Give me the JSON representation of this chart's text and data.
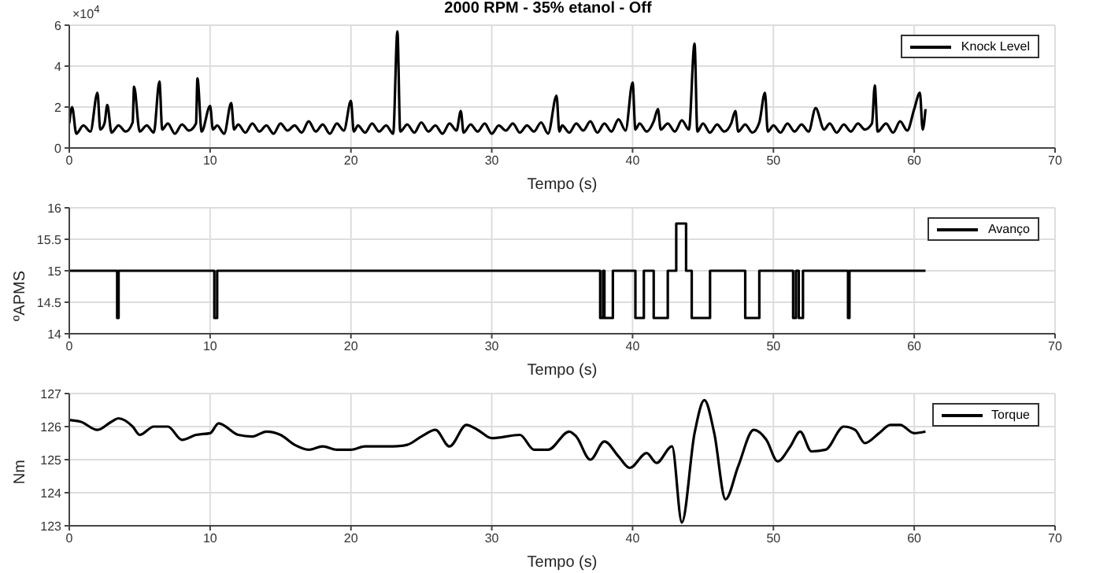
{
  "chart_data": [
    {
      "type": "line",
      "title": "2000 RPM - 35% etanol - Off",
      "xlabel": "Tempo (s)",
      "annotations": [
        "×10$^{4}$"
      ],
      "xlim": [
        0,
        70
      ],
      "xticks": [
        0,
        10,
        20,
        30,
        40,
        50,
        60,
        70
      ],
      "ylim": [
        0,
        6
      ],
      "yticks": [
        0,
        2,
        4,
        6
      ],
      "grid": true,
      "legend": "top right",
      "marker": "none",
      "line_style": "solid",
      "series": [
        {
          "name": "Knock Level",
          "color": "#000000",
          "x": [
            0,
            0.2,
            0.5,
            1,
            1.5,
            2,
            2.2,
            2.5,
            2.7,
            3,
            3.5,
            4,
            4.5,
            4.6,
            5,
            5.5,
            6,
            6.4,
            6.6,
            7,
            7.5,
            8,
            8.5,
            9,
            9.1,
            9.4,
            10,
            10.2,
            10.5,
            11,
            11.5,
            11.7,
            12,
            12.5,
            13,
            13.5,
            14,
            14.5,
            15,
            15.5,
            16,
            16.5,
            17,
            17.5,
            18,
            18.5,
            19,
            19.5,
            20,
            20.2,
            20.5,
            21,
            21.5,
            22,
            22.5,
            23,
            23.3,
            23.5,
            24,
            24.5,
            25,
            25.5,
            26,
            26.5,
            27,
            27.5,
            27.8,
            28,
            28.5,
            29,
            29.5,
            30,
            30.5,
            31,
            31.5,
            32,
            32.5,
            33,
            33.5,
            34,
            34.6,
            34.8,
            35,
            35.5,
            36,
            36.5,
            37,
            37.5,
            38,
            38.5,
            39,
            39.5,
            40,
            40.2,
            40.5,
            41,
            41.5,
            41.8,
            42,
            42.5,
            43,
            43.5,
            44,
            44.4,
            44.6,
            45,
            45.5,
            46,
            46.5,
            47,
            47.3,
            47.5,
            48,
            48.5,
            49,
            49.4,
            49.6,
            50,
            50.5,
            51,
            51.5,
            52,
            52.5,
            53,
            53.6,
            54,
            54.5,
            55,
            55.5,
            56,
            56.5,
            57,
            57.2,
            57.4,
            58,
            58.5,
            59,
            59.5,
            60,
            60.4,
            60.6,
            60.8
          ],
          "values": [
            1.2,
            2.0,
            0.7,
            1.1,
            0.8,
            2.7,
            0.9,
            1.2,
            2.1,
            0.75,
            1.1,
            0.8,
            1.25,
            3.0,
            0.8,
            1.1,
            0.75,
            3.25,
            0.9,
            1.2,
            0.7,
            1.15,
            0.85,
            1.2,
            3.4,
            0.8,
            2.05,
            0.9,
            1.1,
            0.7,
            2.2,
            0.9,
            1.15,
            0.75,
            1.2,
            0.8,
            1.1,
            0.7,
            1.2,
            0.85,
            1.1,
            0.75,
            1.3,
            0.8,
            1.15,
            0.7,
            1.2,
            0.85,
            2.3,
            0.8,
            1.1,
            0.75,
            1.2,
            0.8,
            1.1,
            0.7,
            5.7,
            0.8,
            1.15,
            0.75,
            1.25,
            0.8,
            1.1,
            0.7,
            1.2,
            0.85,
            1.8,
            0.75,
            1.15,
            0.8,
            1.2,
            0.7,
            1.1,
            0.85,
            1.2,
            0.75,
            1.1,
            0.8,
            1.25,
            0.7,
            2.55,
            0.8,
            1.1,
            0.75,
            1.2,
            0.85,
            1.3,
            0.75,
            1.2,
            0.8,
            1.4,
            0.85,
            3.2,
            0.9,
            1.2,
            0.8,
            1.3,
            1.9,
            0.9,
            1.2,
            0.8,
            1.35,
            0.9,
            5.1,
            0.8,
            1.2,
            0.75,
            1.15,
            0.8,
            1.2,
            1.8,
            0.8,
            1.15,
            0.75,
            1.25,
            2.7,
            0.8,
            1.1,
            0.75,
            1.2,
            0.8,
            1.15,
            0.8,
            1.95,
            0.9,
            1.2,
            0.75,
            1.15,
            0.8,
            1.2,
            0.9,
            1.2,
            3.05,
            0.8,
            1.2,
            0.75,
            1.3,
            0.85,
            1.9,
            2.7,
            0.9,
            1.9
          ]
        }
      ]
    },
    {
      "type": "step",
      "xlabel": "Tempo (s)",
      "ylabel": "ºAPMS",
      "xlim": [
        0,
        70
      ],
      "xticks": [
        0,
        10,
        20,
        30,
        40,
        50,
        60,
        70
      ],
      "ylim": [
        14,
        16
      ],
      "yticks": [
        14,
        14.5,
        15,
        15.5,
        16
      ],
      "grid": true,
      "legend": "top right",
      "marker": "none",
      "line_style": "solid",
      "series": [
        {
          "name": "Avanço",
          "color": "#000000",
          "x": [
            0,
            3.4,
            3.5,
            10.3,
            10.5,
            37.7,
            37.9,
            38,
            38.6,
            40.2,
            40.8,
            41.5,
            42.5,
            43.1,
            43.8,
            44.2,
            45.5,
            48,
            49,
            51.4,
            51.6,
            51.8,
            52.1,
            55.3,
            55.4,
            60.8
          ],
          "values": [
            15,
            14.25,
            15,
            14.25,
            15,
            14.25,
            15,
            14.25,
            15,
            14.25,
            15,
            14.25,
            15,
            15.75,
            15,
            14.25,
            15,
            14.25,
            15,
            14.25,
            15,
            14.25,
            15,
            14.25,
            15,
            15
          ]
        }
      ]
    },
    {
      "type": "line",
      "xlabel": "Tempo (s)",
      "ylabel": "Nm",
      "xlim": [
        0,
        70
      ],
      "xticks": [
        0,
        10,
        20,
        30,
        40,
        50,
        60,
        70
      ],
      "ylim": [
        123,
        127
      ],
      "yticks": [
        123,
        124,
        125,
        126,
        127
      ],
      "grid": true,
      "legend": "top right",
      "marker": "none",
      "line_style": "solid",
      "series": [
        {
          "name": "Torque",
          "color": "#000000",
          "x": [
            0,
            0.8,
            2,
            3,
            3.5,
            4.5,
            5,
            6,
            7,
            8,
            9,
            10,
            10.6,
            12,
            13,
            14,
            15,
            16,
            17,
            18,
            19,
            20,
            21,
            23,
            24,
            25,
            26,
            27,
            28.2,
            29,
            30,
            32,
            33,
            34,
            35.5,
            36,
            37,
            38,
            39,
            39.8,
            41,
            41.7,
            42.8,
            43.5,
            44.4,
            45.1,
            45.8,
            46.6,
            47.5,
            48.6,
            49.5,
            50.3,
            51.2,
            51.9,
            52.7,
            53.7,
            55,
            55.8,
            56.5,
            57.5,
            58.3,
            59,
            60,
            60.8
          ],
          "values": [
            126.2,
            126.15,
            125.9,
            126.15,
            126.25,
            126,
            125.75,
            126,
            126,
            125.6,
            125.75,
            125.8,
            126.1,
            125.75,
            125.7,
            125.85,
            125.75,
            125.45,
            125.3,
            125.4,
            125.3,
            125.3,
            125.4,
            125.4,
            125.45,
            125.7,
            125.9,
            125.4,
            126.05,
            125.9,
            125.65,
            125.75,
            125.3,
            125.3,
            125.85,
            125.7,
            125,
            125.55,
            125.1,
            124.75,
            125.2,
            124.9,
            125.4,
            123.1,
            125.8,
            126.8,
            125.8,
            123.8,
            124.8,
            125.9,
            125.6,
            124.95,
            125.4,
            125.85,
            125.25,
            125.3,
            126,
            125.9,
            125.5,
            125.8,
            126.05,
            126.05,
            125.8,
            125.85
          ]
        }
      ]
    }
  ]
}
